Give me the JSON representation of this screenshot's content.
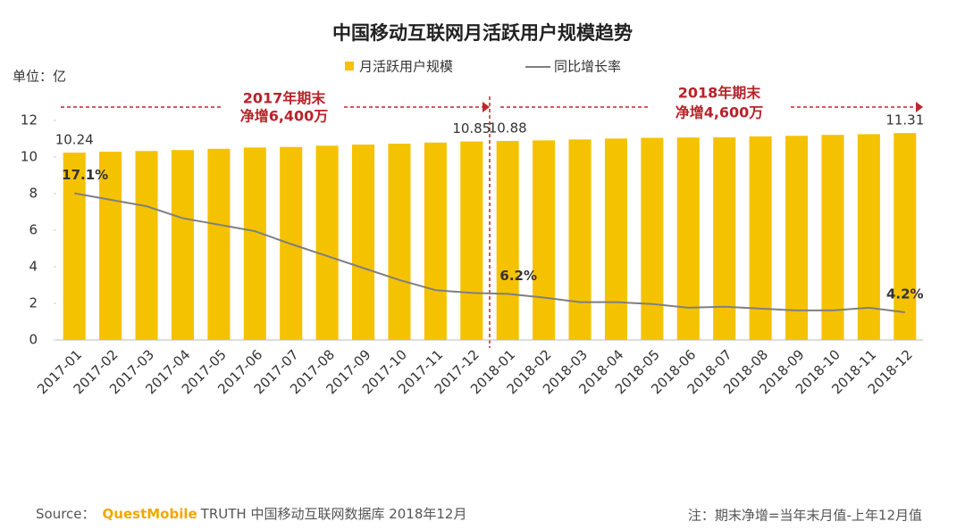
{
  "chart_data": {
    "type": "bar",
    "title": "中国移动互联网月活跃用户规模趋势",
    "unit_label": "单位：亿",
    "categories": [
      "2017-01",
      "2017-02",
      "2017-03",
      "2017-04",
      "2017-05",
      "2017-06",
      "2017-07",
      "2017-08",
      "2017-09",
      "2017-10",
      "2017-11",
      "2017-12",
      "2018-01",
      "2018-02",
      "2018-03",
      "2018-04",
      "2018-05",
      "2018-06",
      "2018-07",
      "2018-08",
      "2018-09",
      "2018-10",
      "2018-11",
      "2018-12"
    ],
    "series": [
      {
        "name": "月活跃用户规模",
        "type": "bar",
        "color": "#f5c200",
        "values": [
          10.24,
          10.29,
          10.33,
          10.38,
          10.45,
          10.52,
          10.55,
          10.62,
          10.68,
          10.73,
          10.79,
          10.85,
          10.88,
          10.91,
          10.96,
          11.01,
          11.05,
          11.07,
          11.08,
          11.13,
          11.16,
          11.21,
          11.25,
          11.31
        ],
        "value_labels": [
          "10.24",
          null,
          null,
          null,
          null,
          null,
          null,
          null,
          null,
          null,
          null,
          "10.85",
          "10.88",
          null,
          null,
          null,
          null,
          null,
          null,
          null,
          null,
          null,
          null,
          "11.31"
        ]
      },
      {
        "name": "同比增长率",
        "type": "line",
        "axis": "y2",
        "color": "#7f7f7f",
        "values": [
          17.1,
          16.4,
          15.7,
          14.4,
          13.7,
          13.0,
          11.6,
          10.3,
          9.0,
          7.7,
          6.6,
          6.3,
          6.2,
          5.8,
          5.3,
          5.3,
          5.1,
          4.7,
          4.8,
          4.6,
          4.4,
          4.4,
          4.7,
          4.2
        ],
        "value_labels": [
          "17.1%",
          null,
          null,
          null,
          null,
          null,
          null,
          null,
          null,
          null,
          null,
          null,
          "6.2%",
          null,
          null,
          null,
          null,
          null,
          null,
          null,
          null,
          null,
          null,
          "4.2%"
        ]
      }
    ],
    "ylim": [
      0,
      12
    ],
    "yticks": [
      0,
      2,
      4,
      6,
      8,
      10,
      12
    ],
    "y2lim": [
      1.2,
      25
    ],
    "annotations": [
      "2017年期末",
      "净增6,400万",
      "2018年期末",
      "净增4,600万"
    ],
    "source": {
      "prefix": "Source：",
      "brand": "QuestMobile",
      "rest": "TRUTH 中国移动互联网数据库 2018年12月"
    },
    "note": "注：期末净增=当年末月值-上年12月值"
  }
}
